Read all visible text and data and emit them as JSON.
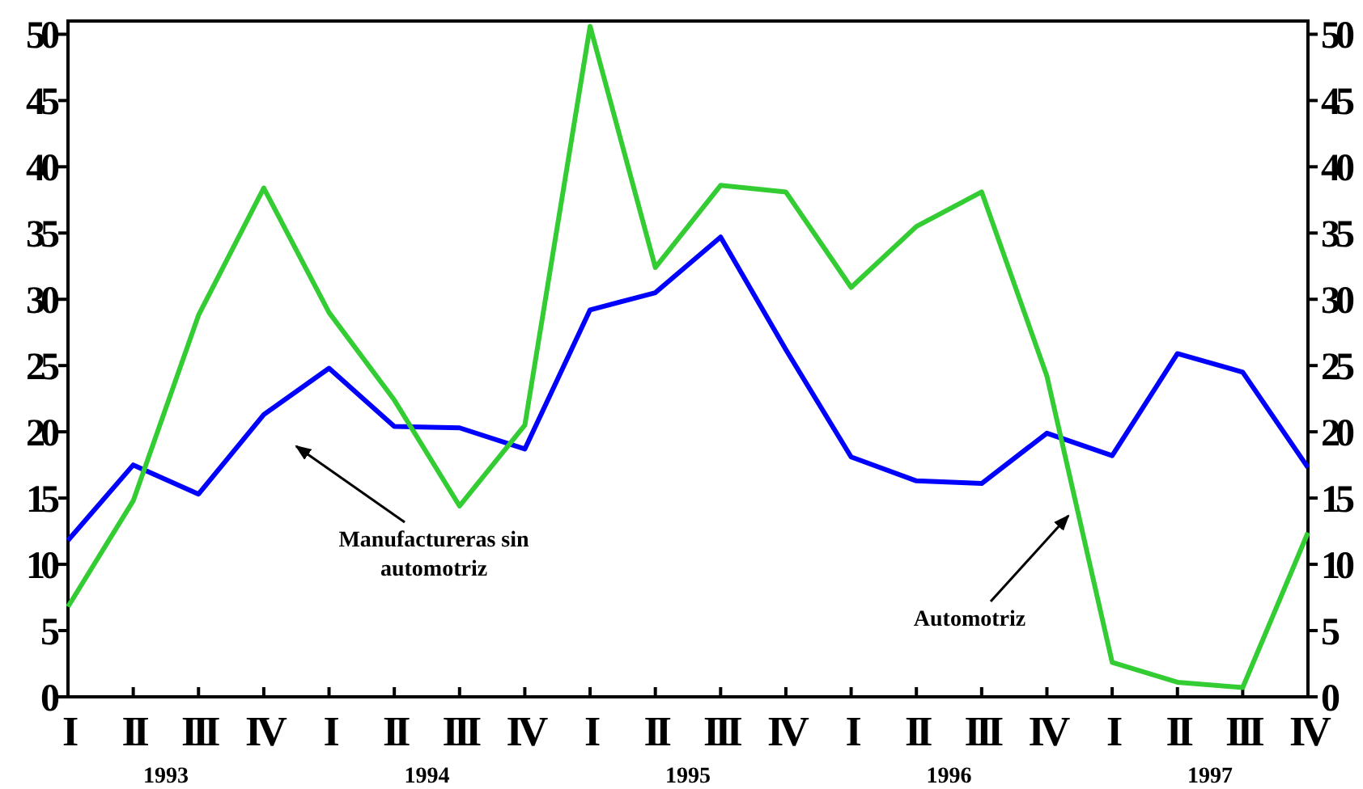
{
  "chart_data": {
    "type": "line",
    "categories": [
      "I",
      "II",
      "III",
      "IV",
      "I",
      "II",
      "III",
      "IV",
      "I",
      "II",
      "III",
      "IV",
      "I",
      "II",
      "III",
      "IV",
      "I",
      "II",
      "III",
      "IV"
    ],
    "series": [
      {
        "color": "#0000ff",
        "values": [
          11.8,
          17.5,
          15.3,
          21.3,
          24.8,
          20.4,
          20.3,
          18.7,
          29.2,
          30.5,
          34.7,
          26.2,
          18.1,
          16.3,
          16.1,
          19.9,
          18.2,
          25.9,
          24.5,
          17.3
        ]
      },
      {
        "color": "#33cc33",
        "values": [
          6.8,
          14.8,
          28.8,
          38.4,
          29.0,
          22.4,
          14.4,
          20.5,
          50.6,
          32.4,
          38.6,
          38.1,
          30.9,
          35.5,
          38.1,
          24.2,
          2.6,
          1.1,
          0.7,
          12.4
        ]
      }
    ],
    "ylim": [
      0,
      51
    ],
    "yticks": [
      0,
      5,
      10,
      15,
      20,
      25,
      30,
      35,
      40,
      45,
      50
    ],
    "y2lim": [
      0,
      51
    ],
    "y2ticks": [
      0,
      5,
      10,
      15,
      20,
      25,
      30,
      35,
      40,
      45,
      50
    ],
    "grid": false,
    "marker": "none",
    "line_style": "solid",
    "annotations": [
      "1993",
      "1994",
      "1995",
      "1996",
      "1997",
      "Manufactureras sin automotriz",
      "Automotriz"
    ]
  }
}
